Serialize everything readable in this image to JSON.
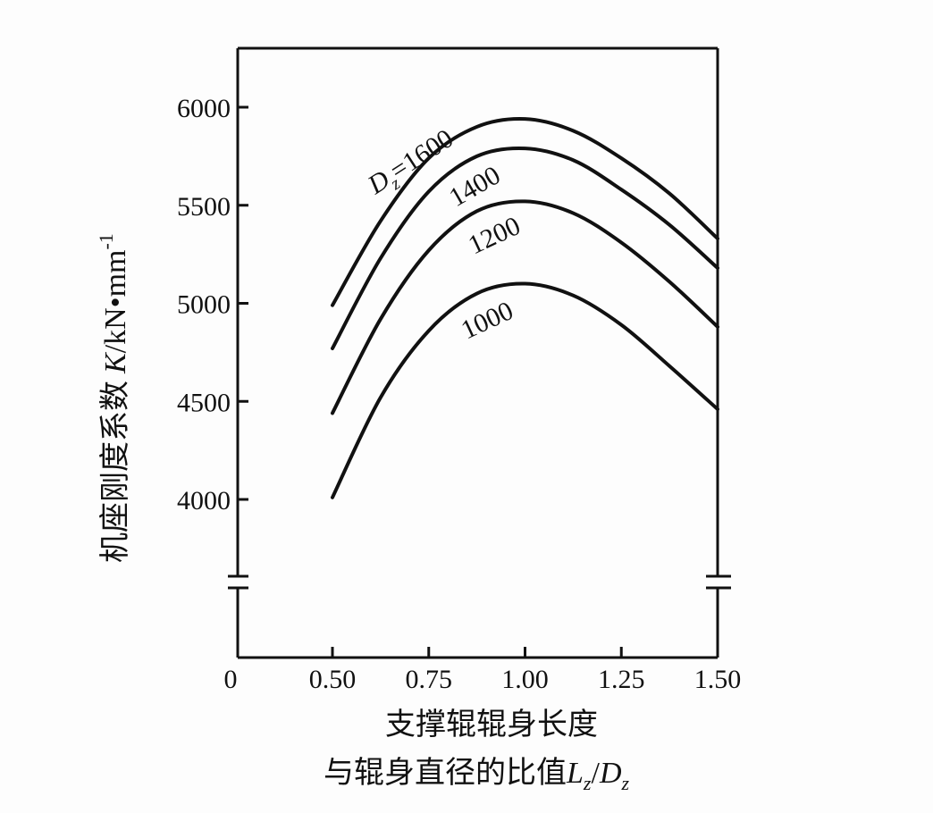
{
  "chart_data": {
    "type": "line",
    "title": "",
    "xlabel_line1": "支撑辊辊身长度",
    "xlabel_line2": "与辊身直径的比值",
    "xlabel_symbol": "Lz/Dz",
    "ylabel": "机座刚度系数 K /kN·mm⁻¹",
    "ylabel_cn": "机座刚度系数",
    "ylabel_sym": "K",
    "ylabel_unit": "/kN•mm",
    "ylabel_exp": "-1",
    "x_ticks": [
      "0",
      "0.50",
      "0.75",
      "1.00",
      "1.25",
      "1.50"
    ],
    "y_ticks": [
      "4000",
      "4500",
      "5000",
      "5500",
      "6000"
    ],
    "xlim": [
      0.5,
      1.5
    ],
    "ylim": [
      3700,
      6300
    ],
    "axis_break": true,
    "grid": false,
    "x": [
      0.5,
      0.625,
      0.75,
      0.875,
      1.0,
      1.125,
      1.25,
      1.375,
      1.5
    ],
    "series": [
      {
        "name": "Dz=1600",
        "label": "D",
        "label_sub": "z",
        "label_rest": "=1600",
        "values": [
          4990,
          5420,
          5740,
          5900,
          5940,
          5880,
          5740,
          5560,
          5330
        ]
      },
      {
        "name": "Dz=1400",
        "label": "1400",
        "values": [
          4770,
          5230,
          5570,
          5750,
          5790,
          5730,
          5580,
          5400,
          5180
        ]
      },
      {
        "name": "Dz=1200",
        "label": "1200",
        "values": [
          4440,
          4920,
          5270,
          5470,
          5520,
          5460,
          5310,
          5110,
          4880
        ]
      },
      {
        "name": "Dz=1000",
        "label": "1000",
        "values": [
          4010,
          4520,
          4860,
          5050,
          5100,
          5040,
          4890,
          4680,
          4460
        ]
      }
    ]
  }
}
